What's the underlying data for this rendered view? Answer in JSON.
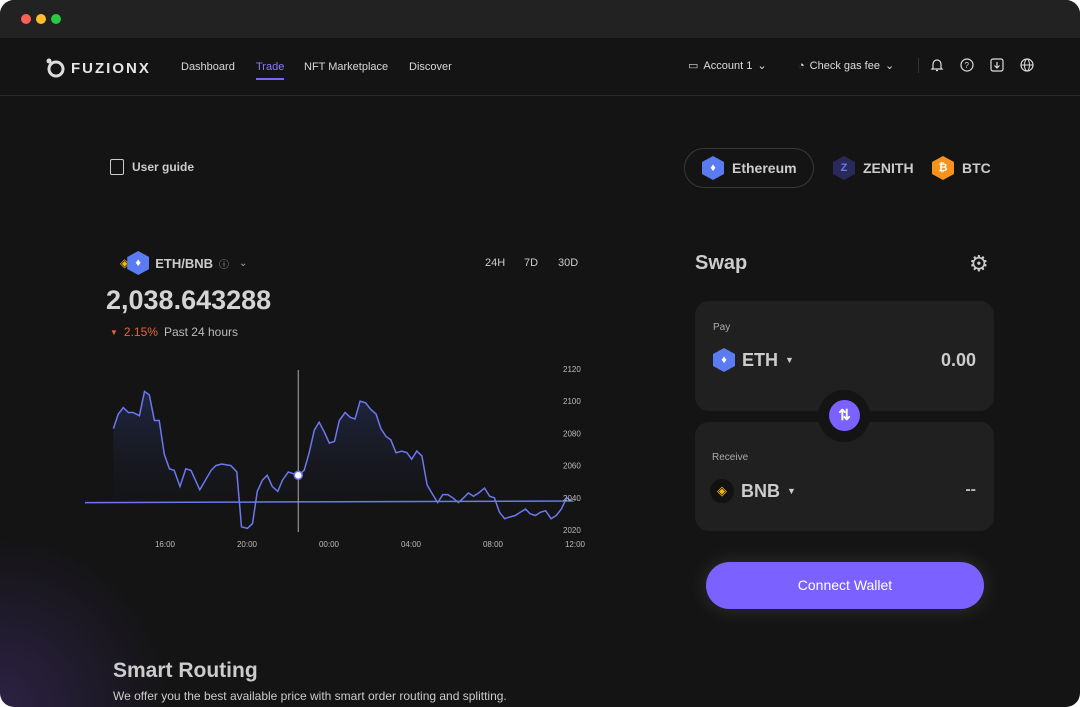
{
  "nav": {
    "brand": "FUZIONX",
    "links": [
      "Dashboard",
      "Trade",
      "NFT Marketplace",
      "Discover"
    ],
    "active": "Trade",
    "account": "Account 1",
    "gas": "Check gas fee"
  },
  "user_guide": "User guide",
  "networks": [
    {
      "label": "Ethereum",
      "color": "#5b7cf0",
      "selected": true
    },
    {
      "label": "ZENITH",
      "color": "#2a2a5a"
    },
    {
      "label": "BTC",
      "color": "#f7931a"
    }
  ],
  "pair": {
    "label": "ETH/BNB",
    "price": "2,038.643288",
    "change": "2.15%",
    "change_color": "#e8643c",
    "period": "Past 24 hours",
    "timeframes": [
      "24H",
      "7D",
      "30D"
    ]
  },
  "chart_data": {
    "type": "area",
    "x_ticks": [
      "16:00",
      "20:00",
      "00:00",
      "04:00",
      "08:00",
      "12:00"
    ],
    "y_ticks": [
      2120,
      2100,
      2080,
      2060,
      2040,
      2020
    ],
    "ylim": [
      2020,
      2120
    ],
    "line_color": "#6b78f0",
    "highlight": {
      "x": "22:30",
      "y": 2054
    },
    "points": [
      [
        "13:29",
        2083
      ],
      [
        "13:43",
        2092
      ],
      [
        "13:58",
        2096
      ],
      [
        "14:13",
        2093
      ],
      [
        "14:27",
        2093
      ],
      [
        "14:45",
        2091
      ],
      [
        "15:00",
        2106
      ],
      [
        "15:14",
        2104
      ],
      [
        "15:29",
        2088
      ],
      [
        "15:43",
        2088
      ],
      [
        "15:58",
        2067
      ],
      [
        "16:13",
        2058
      ],
      [
        "16:27",
        2057
      ],
      [
        "16:44",
        2047
      ],
      [
        "17:01",
        2058
      ],
      [
        "17:16",
        2057
      ],
      [
        "17:42",
        2045
      ],
      [
        "18:15",
        2057
      ],
      [
        "18:29",
        2060
      ],
      [
        "18:46",
        2061
      ],
      [
        "19:13",
        2060
      ],
      [
        "19:30",
        2056
      ],
      [
        "19:44",
        2022
      ],
      [
        "20:01",
        2021
      ],
      [
        "20:16",
        2024
      ],
      [
        "20:30",
        2044
      ],
      [
        "20:45",
        2051
      ],
      [
        "20:59",
        2054
      ],
      [
        "21:14",
        2047
      ],
      [
        "21:30",
        2044
      ],
      [
        "21:44",
        2051
      ],
      [
        "22:01",
        2056
      ],
      [
        "22:30",
        2054
      ],
      [
        "22:47",
        2057
      ],
      [
        "23:02",
        2068
      ],
      [
        "23:17",
        2082
      ],
      [
        "23:31",
        2087
      ],
      [
        "23:46",
        2081
      ],
      [
        "00:01",
        2074
      ],
      [
        "00:16",
        2075
      ],
      [
        "00:30",
        2088
      ],
      [
        "00:47",
        2093
      ],
      [
        "01:02",
        2090
      ],
      [
        "01:16",
        2089
      ],
      [
        "01:31",
        2100
      ],
      [
        "01:47",
        2099
      ],
      [
        "02:02",
        2095
      ],
      [
        "02:18",
        2092
      ],
      [
        "02:32",
        2083
      ],
      [
        "02:47",
        2078
      ],
      [
        "03:01",
        2076
      ],
      [
        "03:16",
        2068
      ],
      [
        "03:33",
        2069
      ],
      [
        "03:48",
        2068
      ],
      [
        "04:02",
        2064
      ],
      [
        "04:17",
        2069
      ],
      [
        "04:32",
        2066
      ],
      [
        "04:47",
        2048
      ],
      [
        "05:01",
        2043
      ],
      [
        "05:18",
        2037
      ],
      [
        "05:33",
        2042
      ],
      [
        "05:48",
        2042
      ],
      [
        "06:02",
        2040
      ],
      [
        "06:19",
        2037
      ],
      [
        "06:34",
        2040
      ],
      [
        "06:48",
        2043
      ],
      [
        "07:03",
        2041
      ],
      [
        "07:18",
        2043
      ],
      [
        "07:35",
        2046
      ],
      [
        "07:50",
        2041
      ],
      [
        "08:04",
        2040
      ],
      [
        "08:19",
        2031
      ],
      [
        "08:34",
        2027
      ],
      [
        "08:48",
        2028
      ],
      [
        "09:05",
        2029
      ],
      [
        "09:20",
        2031
      ],
      [
        "09:35",
        2033
      ],
      [
        "09:49",
        2030
      ],
      [
        "10:04",
        2029
      ],
      [
        "10:19",
        2031
      ],
      [
        "10:34",
        2032
      ],
      [
        "10:50",
        2027
      ],
      [
        "11:05",
        2029
      ],
      [
        "11:20",
        2033
      ],
      [
        "11:36",
        2040
      ],
      [
        "11:51",
        2038
      ],
      [
        "12:06",
        2037
      ]
    ]
  },
  "swap": {
    "title": "Swap",
    "pay_label": "Pay",
    "pay_token": "ETH",
    "pay_amount": "0.00",
    "receive_label": "Receive",
    "receive_token": "BNB",
    "receive_amount": "--",
    "connect": "Connect Wallet",
    "accent": "#7b61ff"
  },
  "routing": {
    "title": "Smart Routing",
    "desc": "We offer you the best available price with smart order routing and splitting."
  }
}
